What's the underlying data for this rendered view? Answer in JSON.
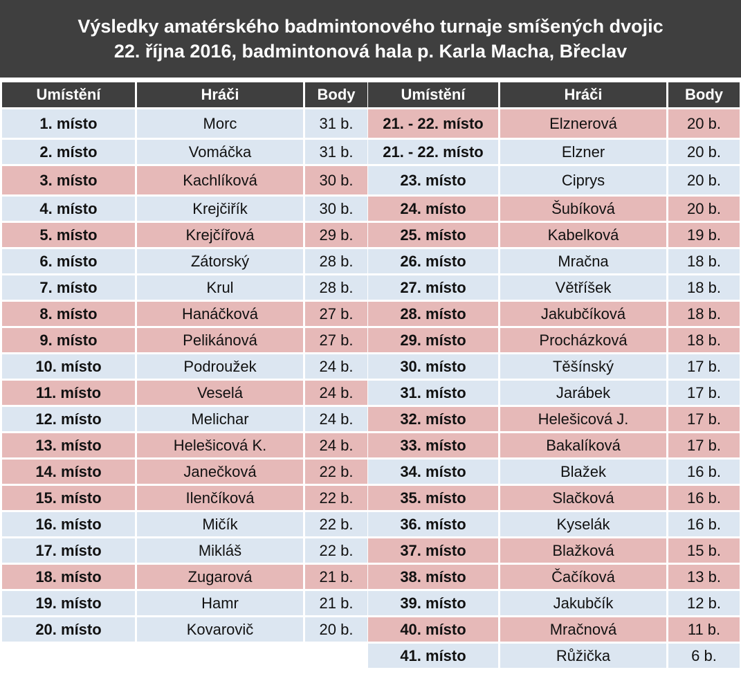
{
  "title": {
    "line1": "Výsledky amatérského badmintonového turnaje smíšených dvojic",
    "line2": "22. října 2016, badmintonová hala p. Karla Macha, Břeclav"
  },
  "headers": {
    "place": "Umístění",
    "players": "Hráči",
    "points": "Body"
  },
  "colors": {
    "header_bg": "#3f3f3f",
    "blue_row": "#dce6f1",
    "pink_row": "#e6b9b8"
  },
  "left": [
    {
      "place": "1. místo",
      "player": "Morc",
      "points": "31 b.",
      "color": "blue"
    },
    {
      "place": "2. místo",
      "player": "Vomáčka",
      "points": "31 b.",
      "color": "blue"
    },
    {
      "place": "3. místo",
      "player": "Kachlíková",
      "points": "30 b.",
      "color": "pink"
    },
    {
      "place": "4. místo",
      "player": "Krejčiřík",
      "points": "30 b.",
      "color": "blue"
    },
    {
      "place": "5. místo",
      "player": "Krejčířová",
      "points": "29 b.",
      "color": "pink"
    },
    {
      "place": "6. místo",
      "player": "Zátorský",
      "points": "28 b.",
      "color": "blue"
    },
    {
      "place": "7. místo",
      "player": "Krul",
      "points": "28 b.",
      "color": "blue"
    },
    {
      "place": "8. místo",
      "player": "Hanáčková",
      "points": "27 b.",
      "color": "pink"
    },
    {
      "place": "9. místo",
      "player": "Pelikánová",
      "points": "27 b.",
      "color": "pink"
    },
    {
      "place": "10. místo",
      "player": "Podroužek",
      "points": "24 b.",
      "color": "blue"
    },
    {
      "place": "11. místo",
      "player": "Veselá",
      "points": "24 b.",
      "color": "pink"
    },
    {
      "place": "12. místo",
      "player": "Melichar",
      "points": "24 b.",
      "color": "blue"
    },
    {
      "place": "13. místo",
      "player": "Helešicová K.",
      "points": "24 b.",
      "color": "pink"
    },
    {
      "place": "14. místo",
      "player": "Janečková",
      "points": "22 b.",
      "color": "pink"
    },
    {
      "place": "15. místo",
      "player": "Ilenčíková",
      "points": "22 b.",
      "color": "pink"
    },
    {
      "place": "16. místo",
      "player": "Mičík",
      "points": "22 b.",
      "color": "blue"
    },
    {
      "place": "17. místo",
      "player": "Mikláš",
      "points": "22 b.",
      "color": "blue"
    },
    {
      "place": "18. místo",
      "player": "Zugarová",
      "points": "21 b.",
      "color": "pink"
    },
    {
      "place": "19. místo",
      "player": "Hamr",
      "points": "21 b.",
      "color": "blue"
    },
    {
      "place": "20. místo",
      "player": "Kovarovič",
      "points": "20 b.",
      "color": "blue"
    }
  ],
  "right": [
    {
      "place": "21. - 22. místo",
      "player": "Elznerová",
      "points": "20 b.",
      "color": "pink"
    },
    {
      "place": "21. - 22. místo",
      "player": "Elzner",
      "points": "20 b.",
      "color": "blue"
    },
    {
      "place": "23. místo",
      "player": "Ciprys",
      "points": "20 b.",
      "color": "blue"
    },
    {
      "place": "24. místo",
      "player": "Šubíková",
      "points": "20 b.",
      "color": "pink"
    },
    {
      "place": "25. místo",
      "player": "Kabelková",
      "points": "19 b.",
      "color": "pink"
    },
    {
      "place": "26. místo",
      "player": "Mračna",
      "points": "18 b.",
      "color": "blue"
    },
    {
      "place": "27. místo",
      "player": "Větříšek",
      "points": "18 b.",
      "color": "blue"
    },
    {
      "place": "28. místo",
      "player": "Jakubčíková",
      "points": "18 b.",
      "color": "pink"
    },
    {
      "place": "29. místo",
      "player": "Procházková",
      "points": "18 b.",
      "color": "pink"
    },
    {
      "place": "30. místo",
      "player": "Těšínský",
      "points": "17 b.",
      "color": "blue"
    },
    {
      "place": "31. místo",
      "player": "Jarábek",
      "points": "17 b.",
      "color": "blue"
    },
    {
      "place": "32. místo",
      "player": "Helešicová J.",
      "points": "17 b.",
      "color": "pink"
    },
    {
      "place": "33. místo",
      "player": "Bakalíková",
      "points": "17 b.",
      "color": "pink"
    },
    {
      "place": "34. místo",
      "player": "Blažek",
      "points": "16 b.",
      "color": "blue"
    },
    {
      "place": "35. místo",
      "player": "Slačková",
      "points": "16 b.",
      "color": "pink"
    },
    {
      "place": "36. místo",
      "player": "Kyselák",
      "points": "16 b.",
      "color": "blue"
    },
    {
      "place": "37. místo",
      "player": "Blažková",
      "points": "15 b.",
      "color": "pink"
    },
    {
      "place": "38. místo",
      "player": "Čačíková",
      "points": "13 b.",
      "color": "pink"
    },
    {
      "place": "39. místo",
      "player": "Jakubčík",
      "points": "12 b.",
      "color": "blue"
    },
    {
      "place": "40. místo",
      "player": "Mračnová",
      "points": "11 b.",
      "color": "pink"
    },
    {
      "place": "41. místo",
      "player": "Růžička",
      "points": "6 b.",
      "color": "blue"
    }
  ]
}
